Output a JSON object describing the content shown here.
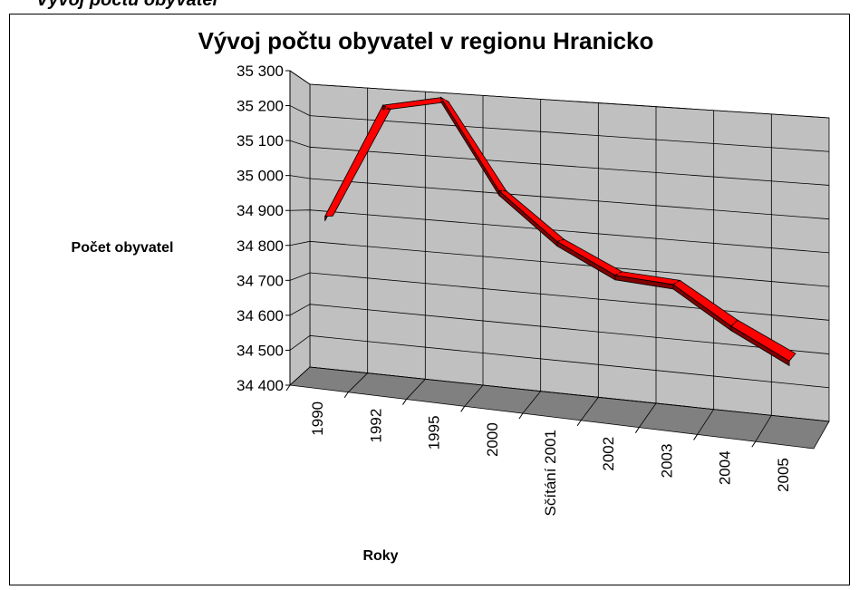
{
  "heading": "Vývoj počtu obyvatel",
  "chart_data": {
    "type": "line3d",
    "title": "Vývoj počtu obyvatel v regionu Hranicko",
    "y_label": "Počet obyvatel",
    "x_label": "Roky",
    "categories": [
      "1990",
      "1992",
      "1995",
      "2000",
      "Sčítání  2001",
      "2002",
      "2003",
      "2004",
      "2005"
    ],
    "series": [
      {
        "name": "Počet obyvatel",
        "color": "#ff0000",
        "values": [
          34890,
          35230,
          35265,
          35010,
          34880,
          34800,
          34790,
          34690,
          34610
        ]
      }
    ],
    "ylim": [
      34400,
      35300
    ],
    "yticks": [
      {
        "value": 34400,
        "label": "34 400"
      },
      {
        "value": 34500,
        "label": "34 500"
      },
      {
        "value": 34600,
        "label": "34 600"
      },
      {
        "value": 34700,
        "label": "34 700"
      },
      {
        "value": 34800,
        "label": "34 800"
      },
      {
        "value": 34900,
        "label": "34 900"
      },
      {
        "value": 35000,
        "label": "35 000"
      },
      {
        "value": 35100,
        "label": "35 100"
      },
      {
        "value": 35200,
        "label": "35 200"
      },
      {
        "value": 35300,
        "label": "35 300"
      }
    ],
    "grid": true,
    "wall_color": "#c0c0c0",
    "floor_color": "#808080"
  }
}
